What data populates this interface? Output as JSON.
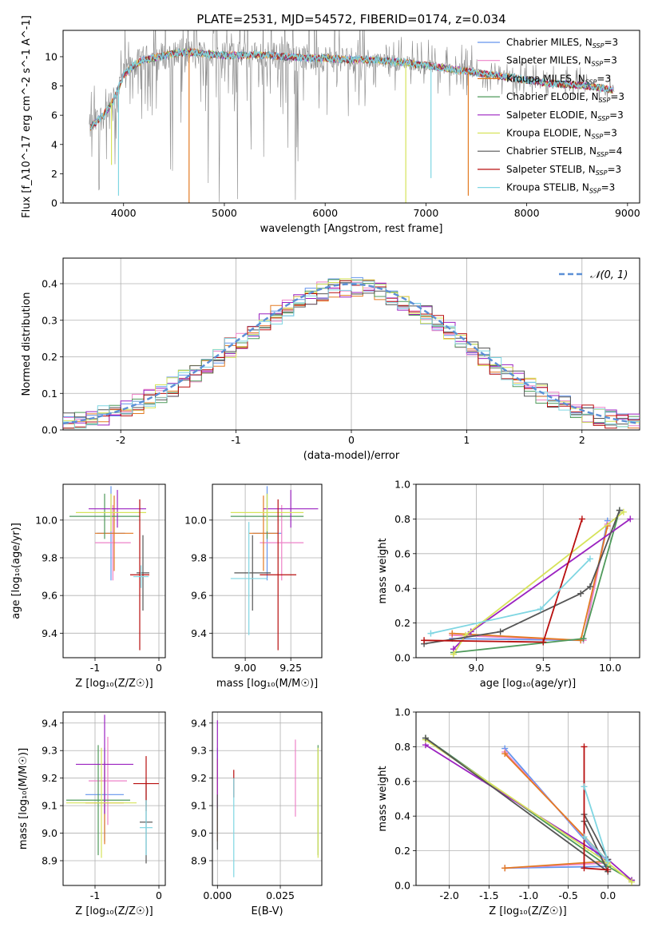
{
  "figure": {
    "title": "PLATE=2531, MJD=54572, FIBERID=0174, z=0.034"
  },
  "models": [
    {
      "name": "Chabrier MILES",
      "nssp": "3",
      "color": "#6495ed"
    },
    {
      "name": "Salpeter MILES",
      "nssp": "3",
      "color": "#ee82c8"
    },
    {
      "name": "Kroupa MILES",
      "nssp": "3",
      "color": "#e37a22"
    },
    {
      "name": "Chabrier ELODIE",
      "nssp": "3",
      "color": "#4f9a5b"
    },
    {
      "name": "Salpeter ELODIE",
      "nssp": "3",
      "color": "#9b22c0"
    },
    {
      "name": "Kroupa ELODIE",
      "nssp": "3",
      "color": "#d6e35a"
    },
    {
      "name": "Chabrier STELIB",
      "nssp": "4",
      "color": "#555555"
    },
    {
      "name": "Salpeter STELIB",
      "nssp": "3",
      "color": "#b80e0e"
    },
    {
      "name": "Kroupa STELIB",
      "nssp": "3",
      "color": "#7fd6e2"
    }
  ],
  "chart_data": [
    {
      "id": "spectrum",
      "type": "line",
      "xlabel": "wavelength [Angstrom, rest frame]",
      "ylabel": "Flux [f_λ10^-17 erg cm^-2 s^-1 A^-1]",
      "xlim": [
        3400,
        9120
      ],
      "ylim": [
        0,
        11.8
      ],
      "xticks": [
        4000,
        5000,
        6000,
        7000,
        8000,
        9000
      ],
      "yticks": [
        0,
        2,
        4,
        6,
        8,
        10
      ],
      "grid": false,
      "legend": "top-right",
      "data_color": "#888888",
      "continuum": {
        "x": [
          3650,
          3700,
          3800,
          3900,
          4000,
          4100,
          4200,
          4300,
          4400,
          4500,
          4600,
          4700,
          4800,
          5000,
          5200,
          5400,
          5600,
          5800,
          6000,
          6200,
          6400,
          6600,
          6800,
          7000,
          7200,
          7400,
          7600,
          7800,
          8000,
          8200,
          8400,
          8600,
          8800,
          8870
        ],
        "y": [
          5.0,
          5.4,
          6.0,
          7.0,
          8.7,
          9.4,
          9.8,
          9.9,
          10.1,
          10.2,
          10.3,
          10.3,
          10.2,
          10.1,
          10.1,
          10.1,
          10.0,
          9.9,
          9.9,
          9.8,
          9.8,
          9.7,
          9.6,
          9.4,
          9.2,
          9.0,
          8.8,
          8.6,
          8.4,
          8.2,
          8.1,
          8.0,
          7.8,
          7.7
        ]
      },
      "dips": [
        {
          "x": 4650,
          "y": 0.0,
          "color": "#e37a22"
        },
        {
          "x": 6800,
          "y": 0.0,
          "color": "#d6e35a"
        },
        {
          "x": 7050,
          "y": 1.7,
          "color": "#7fd6e2"
        },
        {
          "x": 7420,
          "y": 0.5,
          "color": "#e37a22"
        },
        {
          "x": 3880,
          "y": 2.6,
          "color": "#d6e35a"
        },
        {
          "x": 3950,
          "y": 0.5,
          "color": "#7fd6e2"
        }
      ]
    },
    {
      "id": "residuals",
      "type": "area",
      "xlabel": "(data-model)/error",
      "ylabel": "Normed distribution",
      "xlim": [
        -2.5,
        2.5
      ],
      "ylim": [
        0,
        0.47
      ],
      "xticks": [
        -2,
        -1,
        0,
        1,
        2
      ],
      "yticks": [
        0.0,
        0.1,
        0.2,
        0.3,
        0.4
      ],
      "grid": true,
      "legend": "top-right",
      "gaussian_label": "𝒩(0, 1)",
      "gaussian_color": "#5b8fd6"
    },
    {
      "id": "age-vs-Z",
      "type": "scatter",
      "xlabel": "Z [log₁₀(Z/Z☉)]",
      "ylabel": "age  [log₁₀(age/yr)]",
      "xlim": [
        -1.5,
        0.1
      ],
      "ylim": [
        9.27,
        10.19
      ],
      "xticks": [
        -1,
        0
      ],
      "yticks": [
        9.4,
        9.6,
        9.8,
        10.0
      ],
      "grid": true,
      "points": [
        {
          "x": -0.75,
          "xerr": 0.22,
          "y": 9.93,
          "yerr": 0.25,
          "model": 0
        },
        {
          "x": -0.72,
          "xerr": 0.28,
          "y": 9.88,
          "yerr": 0.2,
          "model": 1
        },
        {
          "x": -0.7,
          "xerr": 0.3,
          "y": 9.93,
          "yerr": 0.2,
          "model": 2
        },
        {
          "x": -0.85,
          "xerr": 0.55,
          "y": 10.02,
          "yerr": 0.12,
          "model": 3
        },
        {
          "x": -0.65,
          "xerr": 0.45,
          "y": 10.06,
          "yerr": 0.1,
          "model": 4
        },
        {
          "x": -0.75,
          "xerr": 0.55,
          "y": 10.04,
          "yerr": 0.1,
          "model": 5
        },
        {
          "x": -0.25,
          "xerr": 0.1,
          "y": 9.72,
          "yerr": 0.2,
          "model": 6
        },
        {
          "x": -0.3,
          "xerr": 0.15,
          "y": 9.71,
          "yerr": 0.4,
          "model": 7
        },
        {
          "x": -0.28,
          "xerr": 0.12,
          "y": 9.7,
          "yerr": 0.06,
          "model": 8
        }
      ]
    },
    {
      "id": "age-vs-mass",
      "type": "scatter",
      "xlabel": "mass [log₁₀(M/M☉)]",
      "ylabel": "",
      "xlim": [
        8.82,
        9.42
      ],
      "ylim": [
        9.27,
        10.19
      ],
      "xticks": [
        9.0,
        9.25
      ],
      "tick_labels": [
        "9.00",
        "9.25"
      ],
      "yticks": [
        9.4,
        9.6,
        9.8,
        10.0
      ],
      "grid": true,
      "points": [
        {
          "x": 9.12,
          "xerr": 0.08,
          "y": 9.93,
          "yerr": 0.25,
          "model": 0
        },
        {
          "x": 9.2,
          "xerr": 0.12,
          "y": 9.88,
          "yerr": 0.2,
          "model": 1
        },
        {
          "x": 9.1,
          "xerr": 0.08,
          "y": 9.93,
          "yerr": 0.2,
          "model": 2
        },
        {
          "x": 9.12,
          "xerr": 0.2,
          "y": 10.02,
          "yerr": 0.12,
          "model": 3
        },
        {
          "x": 9.25,
          "xerr": 0.15,
          "y": 10.06,
          "yerr": 0.1,
          "model": 4
        },
        {
          "x": 9.12,
          "xerr": 0.2,
          "y": 10.04,
          "yerr": 0.1,
          "model": 5
        },
        {
          "x": 9.04,
          "xerr": 0.1,
          "y": 9.72,
          "yerr": 0.2,
          "model": 6
        },
        {
          "x": 9.18,
          "xerr": 0.1,
          "y": 9.71,
          "yerr": 0.4,
          "model": 7
        },
        {
          "x": 9.02,
          "xerr": 0.1,
          "y": 9.69,
          "yerr": 0.3,
          "model": 8
        }
      ]
    },
    {
      "id": "weight-vs-age",
      "type": "line",
      "xlabel": "age  [log₁₀(age/yr)]",
      "ylabel": "mass weight",
      "xlim": [
        8.55,
        10.22
      ],
      "ylim": [
        0,
        1.0
      ],
      "xticks": [
        9.0,
        9.5,
        10.0
      ],
      "yticks": [
        0.0,
        0.2,
        0.4,
        0.6,
        0.8,
        1.0
      ],
      "grid": true,
      "series": [
        {
          "model": 0,
          "points": [
            [
              8.82,
              0.11
            ],
            [
              9.8,
              0.1
            ],
            [
              9.98,
              0.79
            ]
          ]
        },
        {
          "model": 1,
          "points": [
            [
              8.82,
              0.13
            ],
            [
              9.8,
              0.1
            ],
            [
              9.98,
              0.77
            ]
          ]
        },
        {
          "model": 2,
          "points": [
            [
              8.82,
              0.14
            ],
            [
              9.78,
              0.1
            ],
            [
              9.98,
              0.76
            ]
          ]
        },
        {
          "model": 3,
          "points": [
            [
              8.83,
              0.03
            ],
            [
              9.8,
              0.11
            ],
            [
              10.07,
              0.85
            ]
          ]
        },
        {
          "model": 4,
          "points": [
            [
              8.83,
              0.05
            ],
            [
              8.96,
              0.15
            ],
            [
              10.15,
              0.8
            ]
          ]
        },
        {
          "model": 5,
          "points": [
            [
              8.83,
              0.02
            ],
            [
              8.92,
              0.13
            ],
            [
              10.1,
              0.84
            ]
          ]
        },
        {
          "model": 6,
          "points": [
            [
              8.61,
              0.08
            ],
            [
              9.18,
              0.15
            ],
            [
              9.78,
              0.37
            ],
            [
              9.85,
              0.41
            ],
            [
              10.07,
              0.85
            ]
          ]
        },
        {
          "model": 7,
          "points": [
            [
              8.61,
              0.1
            ],
            [
              9.5,
              0.09
            ],
            [
              9.79,
              0.8
            ]
          ]
        },
        {
          "model": 8,
          "points": [
            [
              8.66,
              0.14
            ],
            [
              9.48,
              0.28
            ],
            [
              9.85,
              0.57
            ]
          ]
        }
      ]
    },
    {
      "id": "mass-vs-Z",
      "type": "scatter",
      "xlabel": "Z [log₁₀(Z/Z☉)]",
      "ylabel": "mass [log₁₀(M/M☉)]",
      "xlim": [
        -1.5,
        0.1
      ],
      "ylim": [
        8.81,
        9.44
      ],
      "xticks": [
        -1,
        0
      ],
      "yticks": [
        8.9,
        9.0,
        9.1,
        9.2,
        9.3,
        9.4
      ],
      "grid": true,
      "points": [
        {
          "x": -0.85,
          "xerr": 0.3,
          "y": 9.14,
          "yerr": 0.17,
          "model": 0
        },
        {
          "x": -0.8,
          "xerr": 0.3,
          "y": 9.19,
          "yerr": 0.16,
          "model": 1
        },
        {
          "x": -0.85,
          "xerr": 0.3,
          "y": 9.11,
          "yerr": 0.15,
          "model": 2
        },
        {
          "x": -0.95,
          "xerr": 0.5,
          "y": 9.12,
          "yerr": 0.2,
          "model": 3
        },
        {
          "x": -0.85,
          "xerr": 0.45,
          "y": 9.25,
          "yerr": 0.18,
          "model": 4
        },
        {
          "x": -0.9,
          "xerr": 0.55,
          "y": 9.11,
          "yerr": 0.2,
          "model": 5
        },
        {
          "x": -0.2,
          "xerr": 0.1,
          "y": 9.04,
          "yerr": 0.15,
          "model": 6
        },
        {
          "x": -0.2,
          "xerr": 0.2,
          "y": 9.18,
          "yerr": 0.1,
          "model": 7
        },
        {
          "x": -0.2,
          "xerr": 0.1,
          "y": 9.02,
          "yerr": 0.1,
          "model": 8
        }
      ]
    },
    {
      "id": "mass-vs-ebv",
      "type": "scatter",
      "xlabel": "E(B-V)",
      "ylabel": "",
      "xlim": [
        -0.002,
        0.0415
      ],
      "ylim": [
        8.81,
        9.44
      ],
      "xticks": [
        0.0,
        0.025
      ],
      "tick_labels": [
        "0.000",
        "0.025"
      ],
      "yticks": [
        8.9,
        9.0,
        9.1,
        9.2,
        9.3,
        9.4
      ],
      "grid": true,
      "points": [
        {
          "x": 0.0,
          "y": 9.14,
          "yerr": 0.17,
          "model": 0
        },
        {
          "x": 0.031,
          "y": 9.2,
          "yerr": 0.14,
          "model": 1
        },
        {
          "x": 0.0,
          "y": 9.12,
          "yerr": 0.15,
          "model": 2
        },
        {
          "x": 0.04,
          "y": 9.12,
          "yerr": 0.2,
          "model": 3
        },
        {
          "x": 0.0,
          "y": 9.25,
          "yerr": 0.16,
          "model": 4
        },
        {
          "x": 0.04,
          "y": 9.11,
          "yerr": 0.2,
          "model": 5
        },
        {
          "x": 0.0,
          "y": 9.04,
          "yerr": 0.1,
          "model": 6
        },
        {
          "x": 0.0065,
          "y": 9.18,
          "yerr": 0.05,
          "model": 7
        },
        {
          "x": 0.0065,
          "y": 9.02,
          "yerr": 0.18,
          "model": 8
        }
      ]
    },
    {
      "id": "weight-vs-Z",
      "type": "line",
      "xlabel": "Z [log₁₀(Z/Z☉)]",
      "ylabel": "mass weight",
      "xlim": [
        -2.42,
        0.4
      ],
      "ylim": [
        0,
        1.0
      ],
      "xticks": [
        -2.0,
        -1.5,
        -1.0,
        -0.5,
        0.0
      ],
      "yticks": [
        0.0,
        0.2,
        0.4,
        0.6,
        0.8,
        1.0
      ],
      "grid": true,
      "series": [
        {
          "model": 0,
          "points": [
            [
              -1.3,
              0.79
            ],
            [
              0.0,
              0.11
            ],
            [
              -1.3,
              0.1
            ]
          ]
        },
        {
          "model": 1,
          "points": [
            [
              -1.3,
              0.77
            ],
            [
              0.0,
              0.13
            ],
            [
              -1.3,
              0.1
            ]
          ]
        },
        {
          "model": 2,
          "points": [
            [
              -1.3,
              0.76
            ],
            [
              0.0,
              0.14
            ],
            [
              -1.3,
              0.1
            ]
          ]
        },
        {
          "model": 3,
          "points": [
            [
              -2.3,
              0.85
            ],
            [
              0.0,
              0.11
            ],
            [
              0.3,
              0.03
            ]
          ]
        },
        {
          "model": 4,
          "points": [
            [
              -2.3,
              0.81
            ],
            [
              0.0,
              0.15
            ],
            [
              0.3,
              0.03
            ]
          ]
        },
        {
          "model": 5,
          "points": [
            [
              -2.3,
              0.84
            ],
            [
              0.0,
              0.13
            ],
            [
              0.3,
              0.02
            ]
          ]
        },
        {
          "model": 6,
          "points": [
            [
              -2.3,
              0.85
            ],
            [
              0.0,
              0.08
            ],
            [
              -0.3,
              0.37
            ],
            [
              -0.3,
              0.41
            ],
            [
              0.0,
              0.15
            ]
          ]
        },
        {
          "model": 7,
          "points": [
            [
              -0.3,
              0.8
            ],
            [
              -0.3,
              0.1
            ],
            [
              0.0,
              0.09
            ]
          ]
        },
        {
          "model": 8,
          "points": [
            [
              -0.3,
              0.57
            ],
            [
              0.0,
              0.14
            ],
            [
              -0.3,
              0.28
            ]
          ]
        }
      ]
    }
  ]
}
